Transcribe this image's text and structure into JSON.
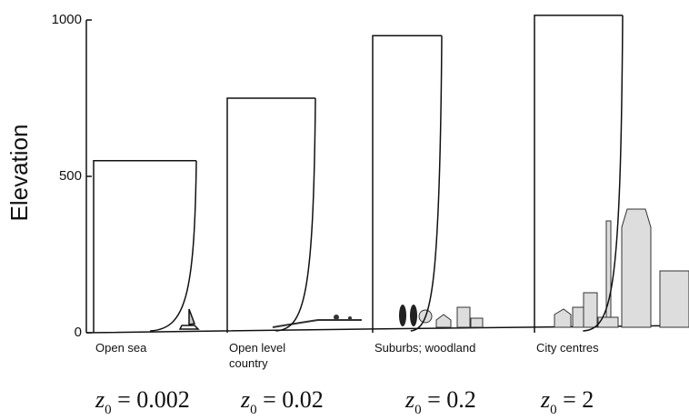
{
  "axis": {
    "label": "Elevation",
    "ylim": [
      0,
      1000
    ],
    "yticks": [
      0,
      500,
      1000
    ]
  },
  "panels": [
    {
      "label": [
        "Open sea"
      ],
      "height": 550,
      "z": {
        "symbol": "z",
        "sub": "0",
        "rest": " = 0.002"
      }
    },
    {
      "label": [
        "Open level",
        "country"
      ],
      "height": 750,
      "z": {
        "symbol": "z",
        "sub": "0",
        "rest": " = 0.02"
      }
    },
    {
      "label": [
        "Suburbs; woodland"
      ],
      "height": 950,
      "z": {
        "symbol": "z",
        "sub": "0",
        "rest": " = 0.2"
      }
    },
    {
      "label": [
        "City centres"
      ],
      "height": 1015,
      "z": {
        "symbol": "z",
        "sub": "0",
        "rest": " = 2"
      }
    }
  ]
}
